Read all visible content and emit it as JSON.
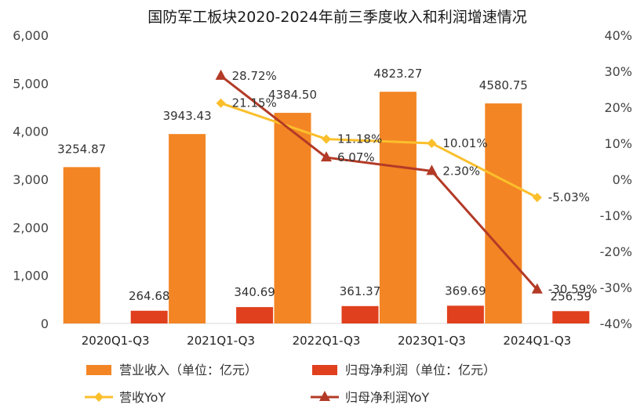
{
  "chart_data": {
    "type": "bar",
    "title": "国防军工板块2020-2024年前三季度收入和利润增速情况",
    "categories": [
      "2020Q1-Q3",
      "2021Q1-Q3",
      "2022Q1-Q3",
      "2023Q1-Q3",
      "2024Q1-Q3"
    ],
    "ylim": [
      0,
      6000
    ],
    "yticks": [
      "0",
      "1,000",
      "2,000",
      "3,000",
      "4,000",
      "5,000",
      "6,000"
    ],
    "y2lim": [
      -40,
      40
    ],
    "y2ticks": [
      "-40%",
      "-30%",
      "-20%",
      "-10%",
      "0%",
      "10%",
      "20%",
      "30%",
      "40%"
    ],
    "series": [
      {
        "name": "营业收入（单位：亿元）",
        "kind": "bar",
        "axis": "left",
        "color": "#F38524",
        "values": [
          3254.87,
          3943.43,
          4384.5,
          4823.27,
          4580.75
        ],
        "labels": [
          "3254.87",
          "3943.43",
          "4384.50",
          "4823.27",
          "4580.75"
        ]
      },
      {
        "name": "归母净利润（单位：亿元）",
        "kind": "bar",
        "axis": "left",
        "color": "#E0401E",
        "values": [
          264.68,
          340.69,
          361.37,
          369.69,
          256.59
        ],
        "labels": [
          "264.68",
          "340.69",
          "361.37",
          "369.69",
          "256.59"
        ]
      },
      {
        "name": "营收YoY",
        "kind": "line",
        "axis": "right",
        "marker": "diamond",
        "color": "#FBBF2C",
        "values": [
          null,
          21.15,
          11.18,
          10.01,
          -5.03
        ],
        "labels": [
          "",
          "21.15%",
          "11.18%",
          "10.01%",
          "-5.03%"
        ]
      },
      {
        "name": "归母净利润YoY",
        "kind": "line",
        "axis": "right",
        "marker": "triangle",
        "color": "#B33A26",
        "values": [
          null,
          28.72,
          6.07,
          2.3,
          -30.59
        ],
        "labels": [
          "",
          "28.72%",
          "6.07%",
          "2.30%",
          "-30.59%"
        ]
      }
    ],
    "legend_position": "bottom",
    "grid": false
  }
}
